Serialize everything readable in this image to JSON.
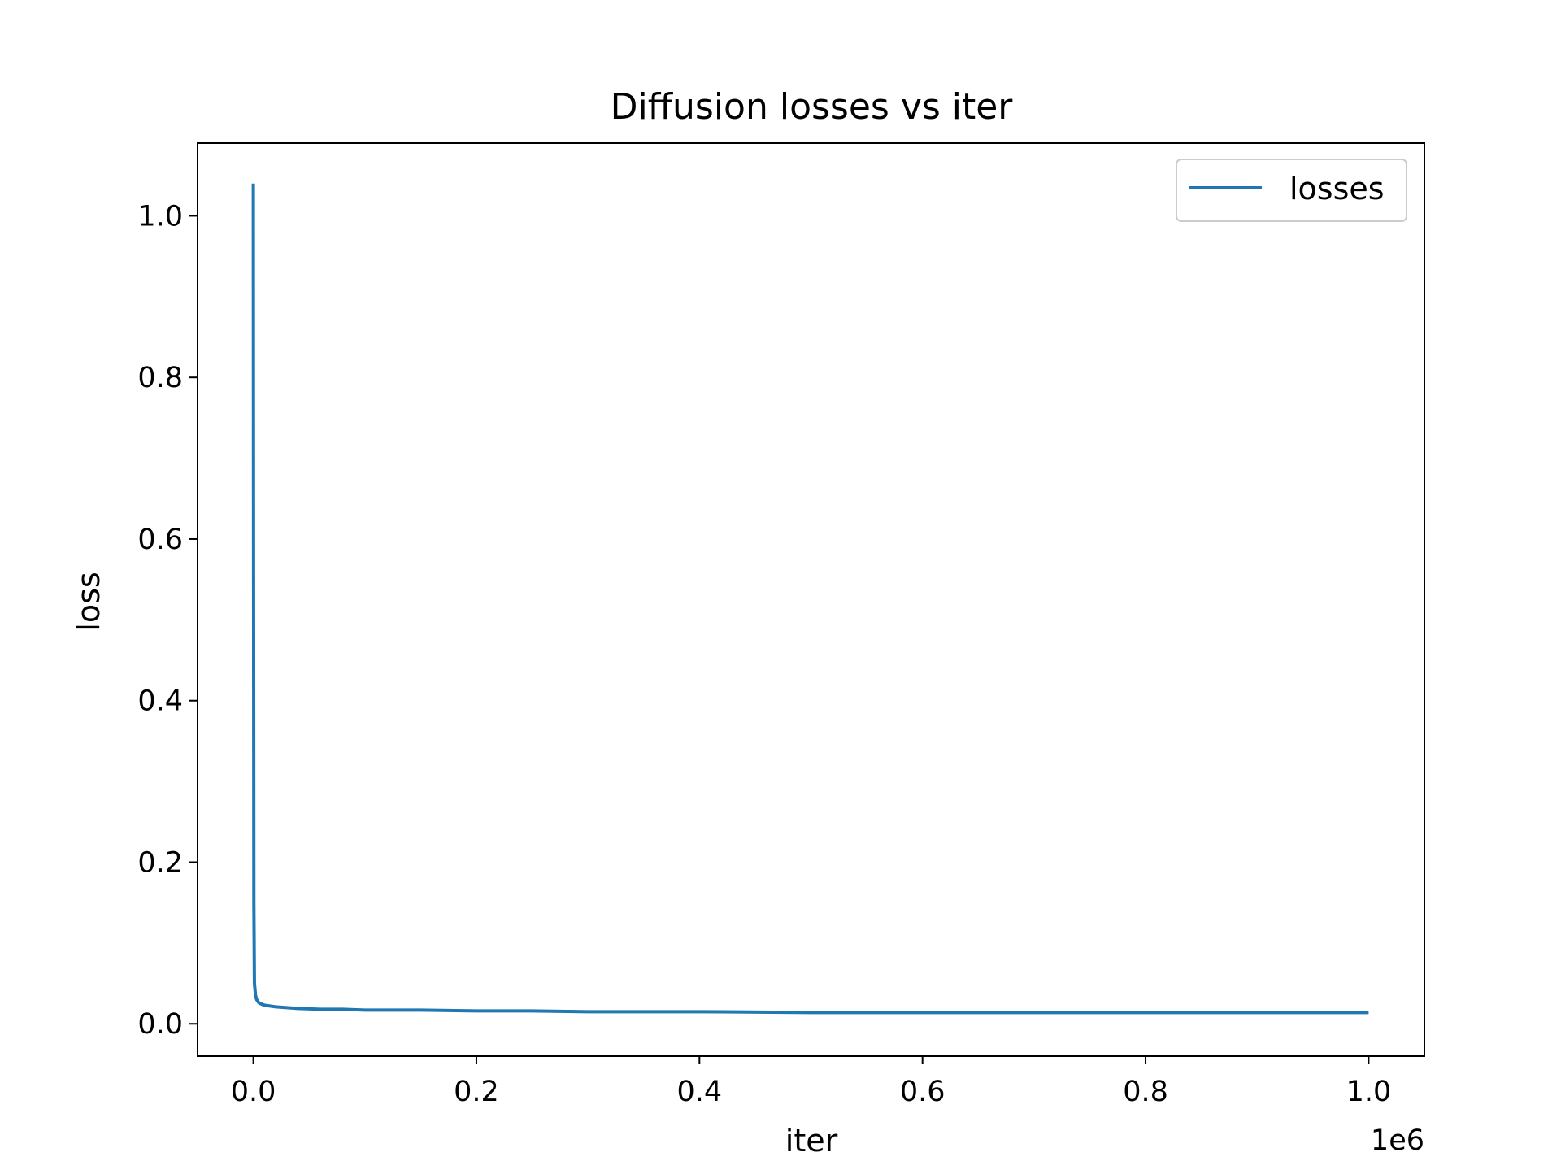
{
  "chart_data": {
    "type": "line",
    "title": "Diffusion losses vs iter",
    "xlabel": "iter",
    "ylabel": "loss",
    "x_offset_text": "1e6",
    "xlim": [
      -50000,
      1050000
    ],
    "ylim": [
      -0.04,
      1.09
    ],
    "xticks": [
      {
        "value": 0,
        "label": "0.0"
      },
      {
        "value": 200000,
        "label": "0.2"
      },
      {
        "value": 400000,
        "label": "0.4"
      },
      {
        "value": 600000,
        "label": "0.6"
      },
      {
        "value": 800000,
        "label": "0.8"
      },
      {
        "value": 1000000,
        "label": "1.0"
      }
    ],
    "yticks": [
      {
        "value": 0.0,
        "label": "0.0"
      },
      {
        "value": 0.2,
        "label": "0.2"
      },
      {
        "value": 0.4,
        "label": "0.4"
      },
      {
        "value": 0.6,
        "label": "0.6"
      },
      {
        "value": 0.8,
        "label": "0.8"
      },
      {
        "value": 1.0,
        "label": "1.0"
      }
    ],
    "grid": false,
    "legend_position": "top-right",
    "series": [
      {
        "name": "losses",
        "color": "#1f77b4",
        "x": [
          0,
          200,
          500,
          1000,
          2000,
          3000,
          5000,
          8000,
          10000,
          15000,
          20000,
          30000,
          40000,
          60000,
          80000,
          100000,
          150000,
          200000,
          250000,
          300000,
          400000,
          500000,
          600000,
          700000,
          800000,
          900000,
          1000000
        ],
        "y": [
          1.04,
          0.6,
          0.15,
          0.05,
          0.035,
          0.03,
          0.026,
          0.024,
          0.023,
          0.022,
          0.021,
          0.02,
          0.019,
          0.018,
          0.018,
          0.017,
          0.017,
          0.016,
          0.016,
          0.015,
          0.015,
          0.014,
          0.014,
          0.014,
          0.014,
          0.014,
          0.014
        ]
      }
    ]
  }
}
